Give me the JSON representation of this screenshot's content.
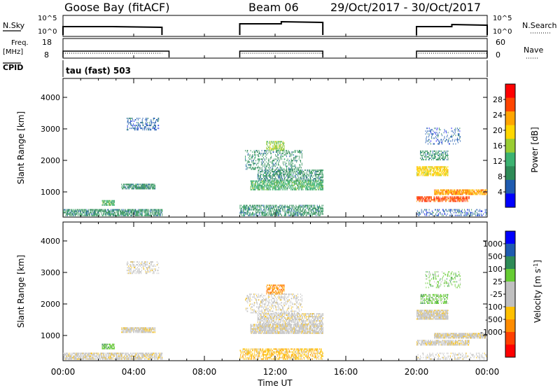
{
  "header": {
    "station": "Goose Bay (fitACF)",
    "beam": "Beam 06",
    "date_range": "29/Oct/2017 - 30/Oct/2017"
  },
  "status_panels": {
    "nsky": {
      "label": "N.Sky",
      "ticks": [
        "10^5",
        "10^0"
      ],
      "right_ticks": [
        "10^5",
        "10^0"
      ],
      "right_label": "N.Search"
    },
    "freq": {
      "label_line1": "Freq.",
      "label_line2": "[MHz]",
      "ticks": [
        "18",
        "8"
      ],
      "right_ticks": [
        "60",
        "0"
      ],
      "right_label": "Nave"
    },
    "cpid": {
      "label": "CPID",
      "value": "tau (fast) 503"
    }
  },
  "x_axis": {
    "label": "Time UT",
    "ticks": [
      "00:00",
      "04:00",
      "08:00",
      "12:00",
      "16:00",
      "20:00",
      "00:00"
    ],
    "range_hours": [
      0,
      24
    ]
  },
  "colors": {
    "power": [
      "#0000ff",
      "#1f5bb0",
      "#2e8b57",
      "#3cb371",
      "#9acd32",
      "#ffd700",
      "#ffa500",
      "#ff4500",
      "#ff0000"
    ],
    "velocity": [
      "#ff0000",
      "#ff4000",
      "#ff8c00",
      "#ffc000",
      "#c0c0c0",
      "#c0c0c0",
      "#66cc33",
      "#2e8b57",
      "#1f5bb0",
      "#0000ff"
    ],
    "ground_scatter": "#bebebe"
  },
  "chart_data": [
    {
      "type": "heatmap",
      "name": "power",
      "ylabel": "Slant Range [km]",
      "yticks": [
        "1000",
        "2000",
        "3000",
        "4000"
      ],
      "ylim": [
        200,
        4600
      ],
      "colorbar_label": "Power [dB]",
      "colorbar_ticks": [
        "4",
        "8",
        "12",
        "16",
        "20",
        "24",
        "28"
      ],
      "colorbar_range": [
        0,
        32
      ],
      "blobs": [
        {
          "t": [
            0.0,
            5.6
          ],
          "r": [
            230,
            420
          ],
          "level": 2,
          "density": 0.7
        },
        {
          "t": [
            2.2,
            2.9
          ],
          "r": [
            560,
            720
          ],
          "level": 3,
          "density": 0.8
        },
        {
          "t": [
            3.3,
            5.2
          ],
          "r": [
            1080,
            1250
          ],
          "level": 2,
          "density": 0.8
        },
        {
          "t": [
            3.6,
            5.4
          ],
          "r": [
            2950,
            3350
          ],
          "level": 1,
          "density": 0.35
        },
        {
          "t": [
            10.0,
            14.7
          ],
          "r": [
            230,
            560
          ],
          "level": 2,
          "density": 0.55
        },
        {
          "t": [
            10.6,
            14.7
          ],
          "r": [
            1050,
            1350
          ],
          "level": 3,
          "density": 0.7
        },
        {
          "t": [
            11.0,
            14.7
          ],
          "r": [
            1350,
            1700
          ],
          "level": 2,
          "density": 0.55
        },
        {
          "t": [
            11.5,
            12.5
          ],
          "r": [
            2300,
            2600
          ],
          "level": 4,
          "density": 0.6
        },
        {
          "t": [
            10.3,
            13.5
          ],
          "r": [
            1700,
            2300
          ],
          "level": 2,
          "density": 0.3
        },
        {
          "t": [
            20.0,
            21.8
          ],
          "r": [
            1500,
            1800
          ],
          "level": 5,
          "density": 0.75
        },
        {
          "t": [
            21.0,
            24.0
          ],
          "r": [
            900,
            1080
          ],
          "level": 6,
          "density": 0.8
        },
        {
          "t": [
            20.0,
            23.0
          ],
          "r": [
            680,
            850
          ],
          "level": 7,
          "density": 0.7
        },
        {
          "t": [
            20.2,
            21.8
          ],
          "r": [
            2000,
            2300
          ],
          "level": 2,
          "density": 0.5
        },
        {
          "t": [
            20.0,
            24.0
          ],
          "r": [
            230,
            450
          ],
          "level": 1,
          "density": 0.3
        },
        {
          "t": [
            20.5,
            22.5
          ],
          "r": [
            2500,
            3000
          ],
          "level": 1,
          "density": 0.2
        }
      ]
    },
    {
      "type": "heatmap",
      "name": "velocity",
      "ylabel": "Slant Range [km]",
      "yticks": [
        "1000",
        "2000",
        "3000",
        "4000"
      ],
      "ylim": [
        200,
        4600
      ],
      "colorbar_label": "Velocity [m s^-1]",
      "colorbar_ticks": [
        "1000",
        "500",
        "100",
        "25",
        "-25",
        "-100",
        "-500",
        "-1000"
      ],
      "blobs": [
        {
          "t": [
            0.0,
            5.6
          ],
          "r": [
            230,
            420
          ],
          "level": 4,
          "density": 0.7
        },
        {
          "t": [
            2.2,
            2.9
          ],
          "r": [
            560,
            720
          ],
          "level": 6,
          "density": 0.8
        },
        {
          "t": [
            3.3,
            5.2
          ],
          "r": [
            1080,
            1250
          ],
          "level": 4,
          "density": 0.8
        },
        {
          "t": [
            3.6,
            5.4
          ],
          "r": [
            2950,
            3350
          ],
          "level": 4,
          "density": 0.35
        },
        {
          "t": [
            10.0,
            14.7
          ],
          "r": [
            230,
            560
          ],
          "level": 3,
          "density": 0.55
        },
        {
          "t": [
            10.6,
            14.7
          ],
          "r": [
            1050,
            1350
          ],
          "level": 4,
          "density": 0.8
        },
        {
          "t": [
            11.0,
            14.7
          ],
          "r": [
            1350,
            1700
          ],
          "level": 4,
          "density": 0.6
        },
        {
          "t": [
            11.5,
            12.5
          ],
          "r": [
            2300,
            2600
          ],
          "level": 2,
          "density": 0.6
        },
        {
          "t": [
            10.3,
            13.5
          ],
          "r": [
            1700,
            2300
          ],
          "level": 4,
          "density": 0.3
        },
        {
          "t": [
            20.0,
            21.8
          ],
          "r": [
            1500,
            1800
          ],
          "level": 4,
          "density": 0.85
        },
        {
          "t": [
            21.0,
            24.0
          ],
          "r": [
            900,
            1080
          ],
          "level": 4,
          "density": 0.85
        },
        {
          "t": [
            20.0,
            23.0
          ],
          "r": [
            680,
            850
          ],
          "level": 4,
          "density": 0.7
        },
        {
          "t": [
            20.2,
            21.8
          ],
          "r": [
            2000,
            2300
          ],
          "level": 6,
          "density": 0.5
        },
        {
          "t": [
            20.0,
            24.0
          ],
          "r": [
            230,
            450
          ],
          "level": 4,
          "density": 0.3
        },
        {
          "t": [
            20.5,
            22.5
          ],
          "r": [
            2500,
            3000
          ],
          "level": 6,
          "density": 0.2
        }
      ]
    }
  ]
}
